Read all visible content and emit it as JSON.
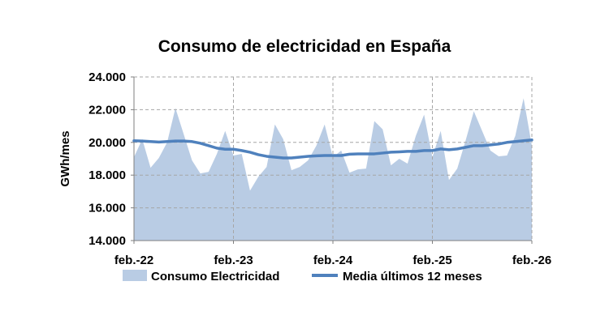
{
  "chart_data": {
    "type": "area",
    "title": "Consumo de electricidad en España",
    "xlabel": "",
    "ylabel": "GWh/mes",
    "ylim": [
      14000,
      24000
    ],
    "yticks": [
      14000,
      16000,
      18000,
      20000,
      22000,
      24000
    ],
    "ytick_labels": [
      "14.000",
      "16.000",
      "18.000",
      "20.000",
      "22.000",
      "24.000"
    ],
    "xtick_labels": [
      "feb.-22",
      "feb.-23",
      "feb.-24",
      "feb.-25",
      "feb.-26"
    ],
    "xtick_months": [
      0,
      12,
      24,
      36,
      48
    ],
    "grid": "dashed",
    "series": [
      {
        "name": "Consumo Electricidad",
        "kind": "area",
        "color": "#b9cce4",
        "values": [
          19100,
          20200,
          18450,
          19050,
          20000,
          22100,
          20500,
          18900,
          18100,
          18200,
          19300,
          20700,
          19200,
          19300,
          17050,
          17900,
          18500,
          21100,
          20200,
          18300,
          18500,
          18900,
          19800,
          21100,
          19100,
          19500,
          18150,
          18350,
          18400,
          21300,
          20800,
          18600,
          19000,
          18700,
          20400,
          21700,
          19100,
          20700,
          17700,
          18400,
          20100,
          21900,
          20700,
          19500,
          19150,
          19200,
          20400,
          22700,
          19800
        ]
      },
      {
        "name": "Media últimos 12 meses",
        "kind": "line",
        "color": "#4f81bd",
        "values": [
          20100,
          20080,
          20050,
          20020,
          20050,
          20080,
          20080,
          20050,
          19950,
          19800,
          19650,
          19580,
          19580,
          19500,
          19400,
          19250,
          19150,
          19100,
          19050,
          19050,
          19100,
          19150,
          19180,
          19200,
          19200,
          19200,
          19280,
          19300,
          19300,
          19300,
          19350,
          19400,
          19420,
          19450,
          19450,
          19500,
          19500,
          19600,
          19550,
          19600,
          19700,
          19800,
          19800,
          19850,
          19900,
          20000,
          20050,
          20100,
          20150
        ]
      }
    ],
    "legend": "bottom"
  }
}
